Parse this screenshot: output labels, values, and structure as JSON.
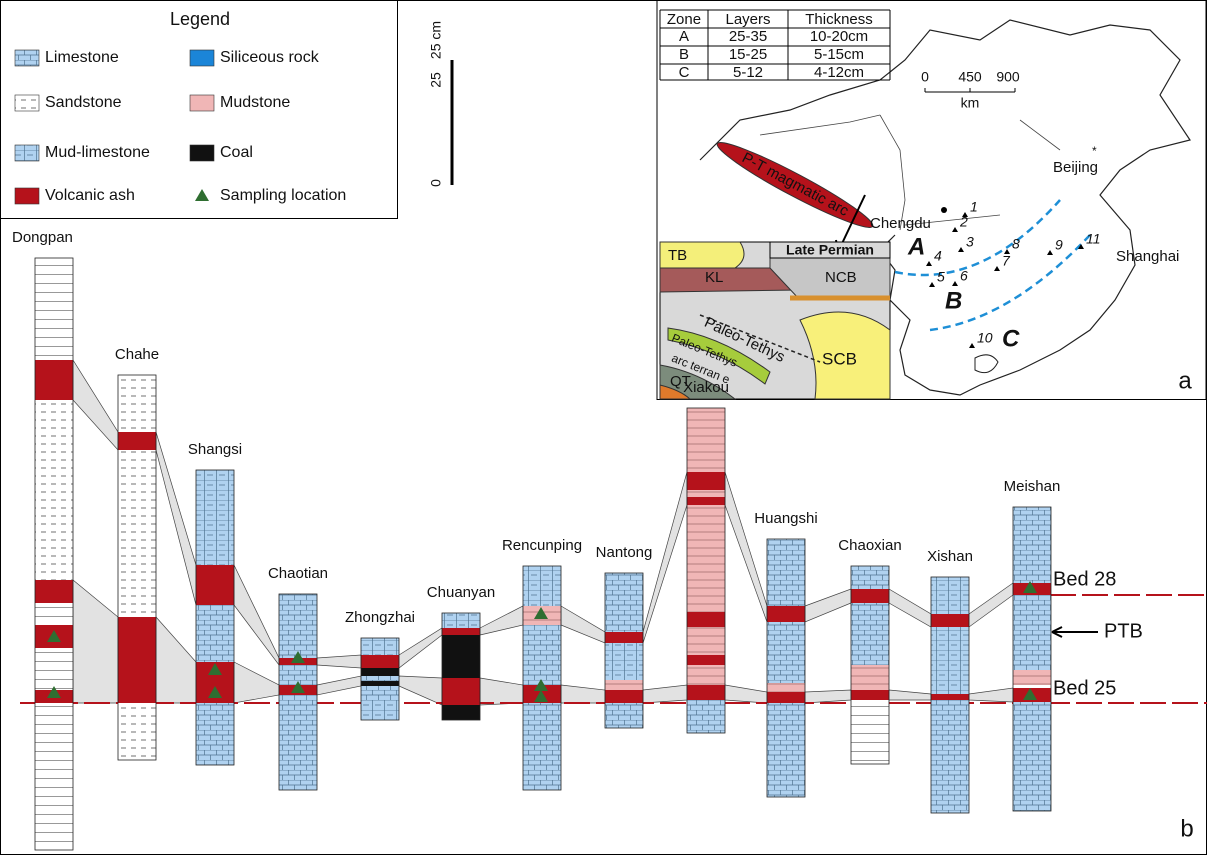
{
  "legend": {
    "title": "Legend",
    "items": [
      "Limestone",
      "Siliceous rock",
      "Sandstone",
      "Mudstone",
      "Mud-limestone",
      "Coal",
      "Volcanic ash",
      "Sampling location"
    ]
  },
  "scale_bar": {
    "unit_label": "25 cm",
    "ticks": [
      "25",
      "0"
    ]
  },
  "table": {
    "header": [
      "Zone",
      "Layers",
      "Thickness"
    ],
    "rows": [
      [
        "A",
        "25-35",
        "10-20cm"
      ],
      [
        "B",
        "15-25",
        "5-15cm"
      ],
      [
        "C",
        "5-12",
        "4-12cm"
      ]
    ]
  },
  "map": {
    "panel_label": "a",
    "scale": [
      "0",
      "450",
      "900"
    ],
    "scale_unit": "km",
    "arc_label": "P-T magmatic arc",
    "cities": [
      "Beijing",
      "Chengdu",
      "Shanghai"
    ],
    "sites": [
      "1",
      "2",
      "3",
      "4",
      "5",
      "6",
      "7",
      "8",
      "9",
      "10",
      "11"
    ],
    "zones": [
      "A",
      "B",
      "C"
    ],
    "inset": {
      "title": "Late Permian",
      "labels": [
        "TB",
        "KL",
        "NCB",
        "Paleo-Tethys",
        "Paleo-Tethys",
        "arc terran e",
        "SCB",
        "QT"
      ]
    }
  },
  "sections": {
    "panel_label": "b",
    "names": [
      "Dongpan",
      "Chahe",
      "Shangsi",
      "Chaotian",
      "Zhongzhai",
      "Chuanyan",
      "Rencunping",
      "Nantong",
      "Xiakou",
      "Huangshi",
      "Chaoxian",
      "Xishan",
      "Meishan"
    ],
    "markers": [
      "Bed 28",
      "PTB",
      "Bed 25"
    ]
  }
}
